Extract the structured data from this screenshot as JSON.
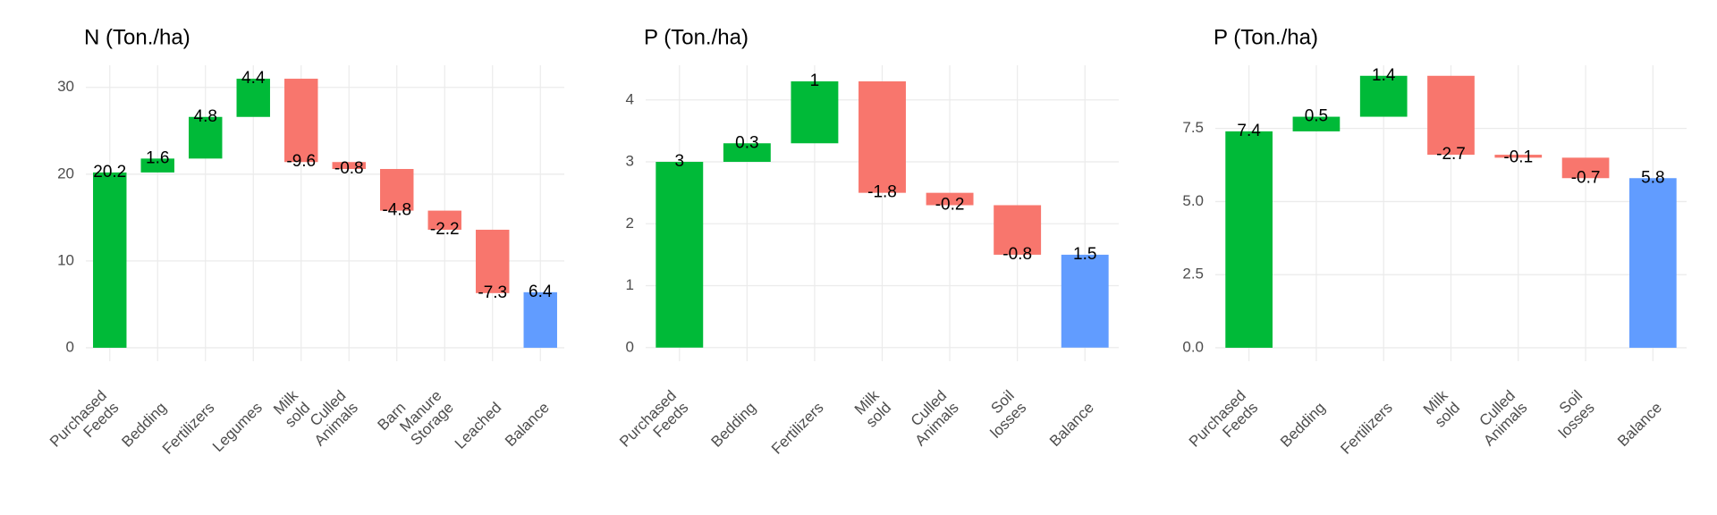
{
  "chart_data": [
    {
      "type": "waterfall",
      "title": "N (Ton./ha)",
      "categories": [
        "Purchased\nFeeds",
        "Bedding",
        "Fertilizers",
        "Legumes",
        "Milk\nsold",
        "Culled\nAnimals",
        "Barn",
        "Manure\nStorage",
        "Leached",
        "Balance"
      ],
      "values": [
        20.2,
        1.6,
        4.8,
        4.4,
        -9.6,
        -0.8,
        -4.8,
        -2.2,
        -7.3,
        6.4
      ],
      "measure": [
        "relative",
        "relative",
        "relative",
        "relative",
        "relative",
        "relative",
        "relative",
        "relative",
        "relative",
        "total"
      ],
      "colors": {
        "increase": "#00BA38",
        "decrease": "#F8766D",
        "total": "#619CFF"
      },
      "ylim": [
        -1.55,
        32.55
      ],
      "yticks": [
        0,
        10,
        20,
        30
      ],
      "grid": true
    },
    {
      "type": "waterfall",
      "title": "P (Ton./ha)",
      "categories": [
        "Purchased\nFeeds",
        "Bedding",
        "Fertilizers",
        "Milk\nsold",
        "Culled\nAnimals",
        "Soil\nlosses",
        "Balance"
      ],
      "values": [
        3,
        0.3,
        1,
        -1.8,
        -0.2,
        -0.8,
        1.5
      ],
      "measure": [
        "relative",
        "relative",
        "relative",
        "relative",
        "relative",
        "relative",
        "total"
      ],
      "colors": {
        "increase": "#00BA38",
        "decrease": "#F8766D",
        "total": "#619CFF"
      },
      "ylim": [
        -0.22,
        4.56
      ],
      "yticks": [
        0,
        1,
        2,
        3,
        4
      ],
      "grid": true
    },
    {
      "type": "waterfall",
      "title": "P (Ton./ha)",
      "categories": [
        "Purchased\nFeeds",
        "Bedding",
        "Fertilizers",
        "Milk\nsold",
        "Culled\nAnimals",
        "Soil\nlosses",
        "Balance"
      ],
      "values": [
        7.4,
        0.5,
        1.4,
        -2.7,
        -0.1,
        -0.7,
        5.8
      ],
      "measure": [
        "relative",
        "relative",
        "relative",
        "relative",
        "relative",
        "relative",
        "total"
      ],
      "colors": {
        "increase": "#00BA38",
        "decrease": "#F8766D",
        "total": "#619CFF"
      },
      "ylim": [
        -0.46,
        9.66
      ],
      "yticks": [
        {
          "value": 0,
          "label": "0.0"
        },
        {
          "value": 2.5,
          "label": "2.5"
        },
        {
          "value": 5,
          "label": "5.0"
        },
        {
          "value": 7.5,
          "label": "7.5"
        }
      ],
      "grid": true
    }
  ]
}
